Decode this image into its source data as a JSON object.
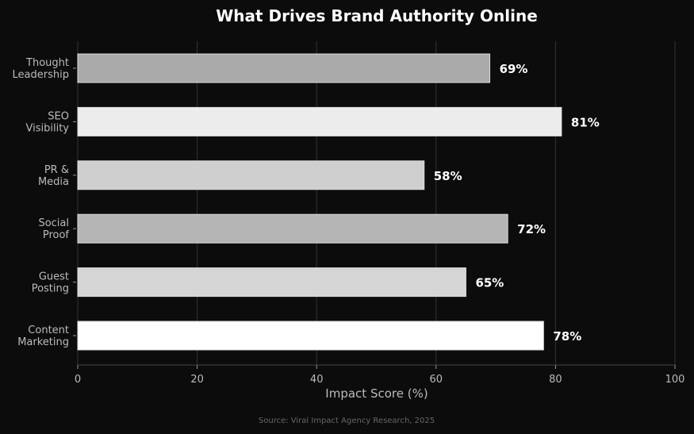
{
  "chart_data": {
    "type": "bar",
    "orientation": "horizontal",
    "title": "What Drives Brand Authority Online",
    "xlabel": "Impact Score (%)",
    "ylabel": "",
    "xlim": [
      0,
      100
    ],
    "xticks": [
      "0",
      "20",
      "40",
      "60",
      "80",
      "100"
    ],
    "grid": true,
    "categories": [
      "Thought\nLeadership",
      "SEO\nVisibility",
      "PR &\nMedia",
      "Social\nProof",
      "Guest\nPosting",
      "Content\nMarketing"
    ],
    "values": [
      69,
      81,
      58,
      72,
      65,
      78
    ],
    "data_labels": [
      "69%",
      "81%",
      "58%",
      "72%",
      "65%",
      "78%"
    ],
    "colors": [
      "#aaaaaa",
      "#ececec",
      "#cfcfcf",
      "#b5b5b5",
      "#d5d5d5",
      "#ffffff"
    ],
    "source": "Source: Viral Impact Agency Research, 2025"
  }
}
